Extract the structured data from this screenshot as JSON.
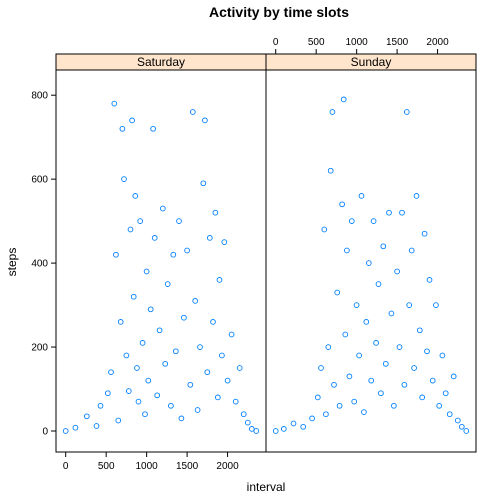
{
  "chart_data": {
    "type": "scatter",
    "title": "Activity by time slots",
    "xlabel": "interval",
    "ylabel": "steps",
    "xlim": [
      -120,
      2475
    ],
    "ylim": [
      -50,
      860
    ],
    "x_ticks": [
      0,
      500,
      1000,
      1500,
      2000
    ],
    "y_ticks": [
      0,
      200,
      400,
      600,
      800
    ],
    "x_tick_labels": [
      "0",
      "500",
      "1000",
      "1500",
      "2000"
    ],
    "y_tick_labels": [
      "0",
      "200",
      "400",
      "600",
      "800"
    ],
    "marker_color": "#0080ff",
    "strip_color": "#ffe5cc",
    "panels": [
      {
        "name": "Saturday",
        "points": [
          [
            0,
            0
          ],
          [
            120,
            8
          ],
          [
            260,
            35
          ],
          [
            380,
            12
          ],
          [
            430,
            60
          ],
          [
            520,
            90
          ],
          [
            560,
            140
          ],
          [
            600,
            780
          ],
          [
            620,
            420
          ],
          [
            650,
            25
          ],
          [
            680,
            260
          ],
          [
            700,
            720
          ],
          [
            720,
            600
          ],
          [
            750,
            180
          ],
          [
            780,
            95
          ],
          [
            800,
            480
          ],
          [
            820,
            740
          ],
          [
            840,
            320
          ],
          [
            860,
            560
          ],
          [
            880,
            150
          ],
          [
            900,
            70
          ],
          [
            920,
            500
          ],
          [
            950,
            210
          ],
          [
            980,
            40
          ],
          [
            1000,
            380
          ],
          [
            1020,
            120
          ],
          [
            1050,
            290
          ],
          [
            1080,
            720
          ],
          [
            1100,
            460
          ],
          [
            1130,
            85
          ],
          [
            1160,
            240
          ],
          [
            1200,
            530
          ],
          [
            1230,
            160
          ],
          [
            1260,
            350
          ],
          [
            1300,
            60
          ],
          [
            1330,
            420
          ],
          [
            1360,
            190
          ],
          [
            1400,
            500
          ],
          [
            1430,
            30
          ],
          [
            1460,
            270
          ],
          [
            1500,
            430
          ],
          [
            1540,
            110
          ],
          [
            1570,
            760
          ],
          [
            1600,
            310
          ],
          [
            1630,
            50
          ],
          [
            1660,
            200
          ],
          [
            1700,
            590
          ],
          [
            1720,
            740
          ],
          [
            1750,
            140
          ],
          [
            1780,
            460
          ],
          [
            1820,
            260
          ],
          [
            1850,
            520
          ],
          [
            1880,
            80
          ],
          [
            1900,
            360
          ],
          [
            1930,
            180
          ],
          [
            1960,
            450
          ],
          [
            2000,
            120
          ],
          [
            2050,
            230
          ],
          [
            2100,
            70
          ],
          [
            2150,
            150
          ],
          [
            2200,
            40
          ],
          [
            2250,
            20
          ],
          [
            2300,
            5
          ],
          [
            2355,
            0
          ]
        ]
      },
      {
        "name": "Sunday",
        "points": [
          [
            0,
            0
          ],
          [
            100,
            5
          ],
          [
            220,
            18
          ],
          [
            340,
            10
          ],
          [
            450,
            30
          ],
          [
            520,
            80
          ],
          [
            560,
            150
          ],
          [
            600,
            480
          ],
          [
            620,
            40
          ],
          [
            650,
            200
          ],
          [
            680,
            620
          ],
          [
            700,
            760
          ],
          [
            720,
            110
          ],
          [
            760,
            330
          ],
          [
            790,
            60
          ],
          [
            820,
            540
          ],
          [
            840,
            790
          ],
          [
            860,
            230
          ],
          [
            880,
            430
          ],
          [
            910,
            130
          ],
          [
            940,
            500
          ],
          [
            970,
            70
          ],
          [
            1000,
            300
          ],
          [
            1030,
            180
          ],
          [
            1060,
            560
          ],
          [
            1090,
            45
          ],
          [
            1120,
            260
          ],
          [
            1150,
            400
          ],
          [
            1180,
            120
          ],
          [
            1210,
            500
          ],
          [
            1240,
            210
          ],
          [
            1270,
            350
          ],
          [
            1300,
            90
          ],
          [
            1330,
            440
          ],
          [
            1360,
            160
          ],
          [
            1400,
            520
          ],
          [
            1430,
            280
          ],
          [
            1460,
            60
          ],
          [
            1500,
            380
          ],
          [
            1530,
            200
          ],
          [
            1560,
            520
          ],
          [
            1590,
            110
          ],
          [
            1620,
            760
          ],
          [
            1650,
            300
          ],
          [
            1680,
            430
          ],
          [
            1710,
            150
          ],
          [
            1740,
            560
          ],
          [
            1780,
            240
          ],
          [
            1810,
            80
          ],
          [
            1840,
            470
          ],
          [
            1870,
            190
          ],
          [
            1900,
            360
          ],
          [
            1940,
            120
          ],
          [
            1980,
            300
          ],
          [
            2020,
            60
          ],
          [
            2060,
            180
          ],
          [
            2100,
            90
          ],
          [
            2150,
            40
          ],
          [
            2200,
            130
          ],
          [
            2250,
            25
          ],
          [
            2300,
            10
          ],
          [
            2355,
            0
          ]
        ]
      }
    ]
  }
}
